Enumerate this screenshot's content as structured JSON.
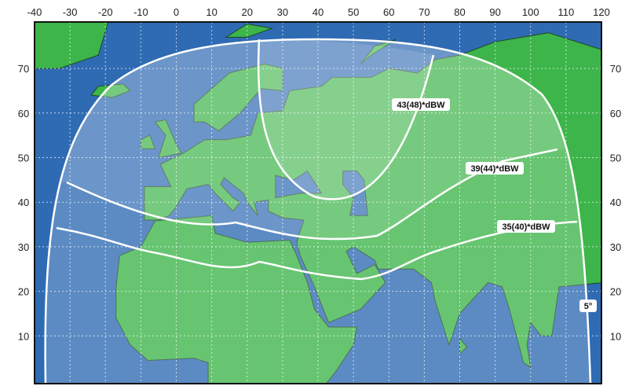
{
  "axes": {
    "longitude_ticks": [
      "-40",
      "-30",
      "-20",
      "-10",
      "0",
      "10",
      "20",
      "30",
      "40",
      "50",
      "60",
      "70",
      "80",
      "90",
      "100",
      "110",
      "120"
    ],
    "latitude_ticks": [
      "70",
      "60",
      "50",
      "40",
      "30",
      "20",
      "10"
    ]
  },
  "contours": [
    {
      "id": "c43",
      "label": "43(48)*dBW"
    },
    {
      "id": "c39",
      "label": "39(44)*dBW"
    },
    {
      "id": "c35",
      "label": "35(40)*dBW"
    },
    {
      "id": "c5",
      "label": "5°"
    }
  ],
  "colors": {
    "ocean": "#2f6bb3",
    "land": "#3db54a",
    "border": "#1d4a25",
    "contour": "#ffffff"
  }
}
